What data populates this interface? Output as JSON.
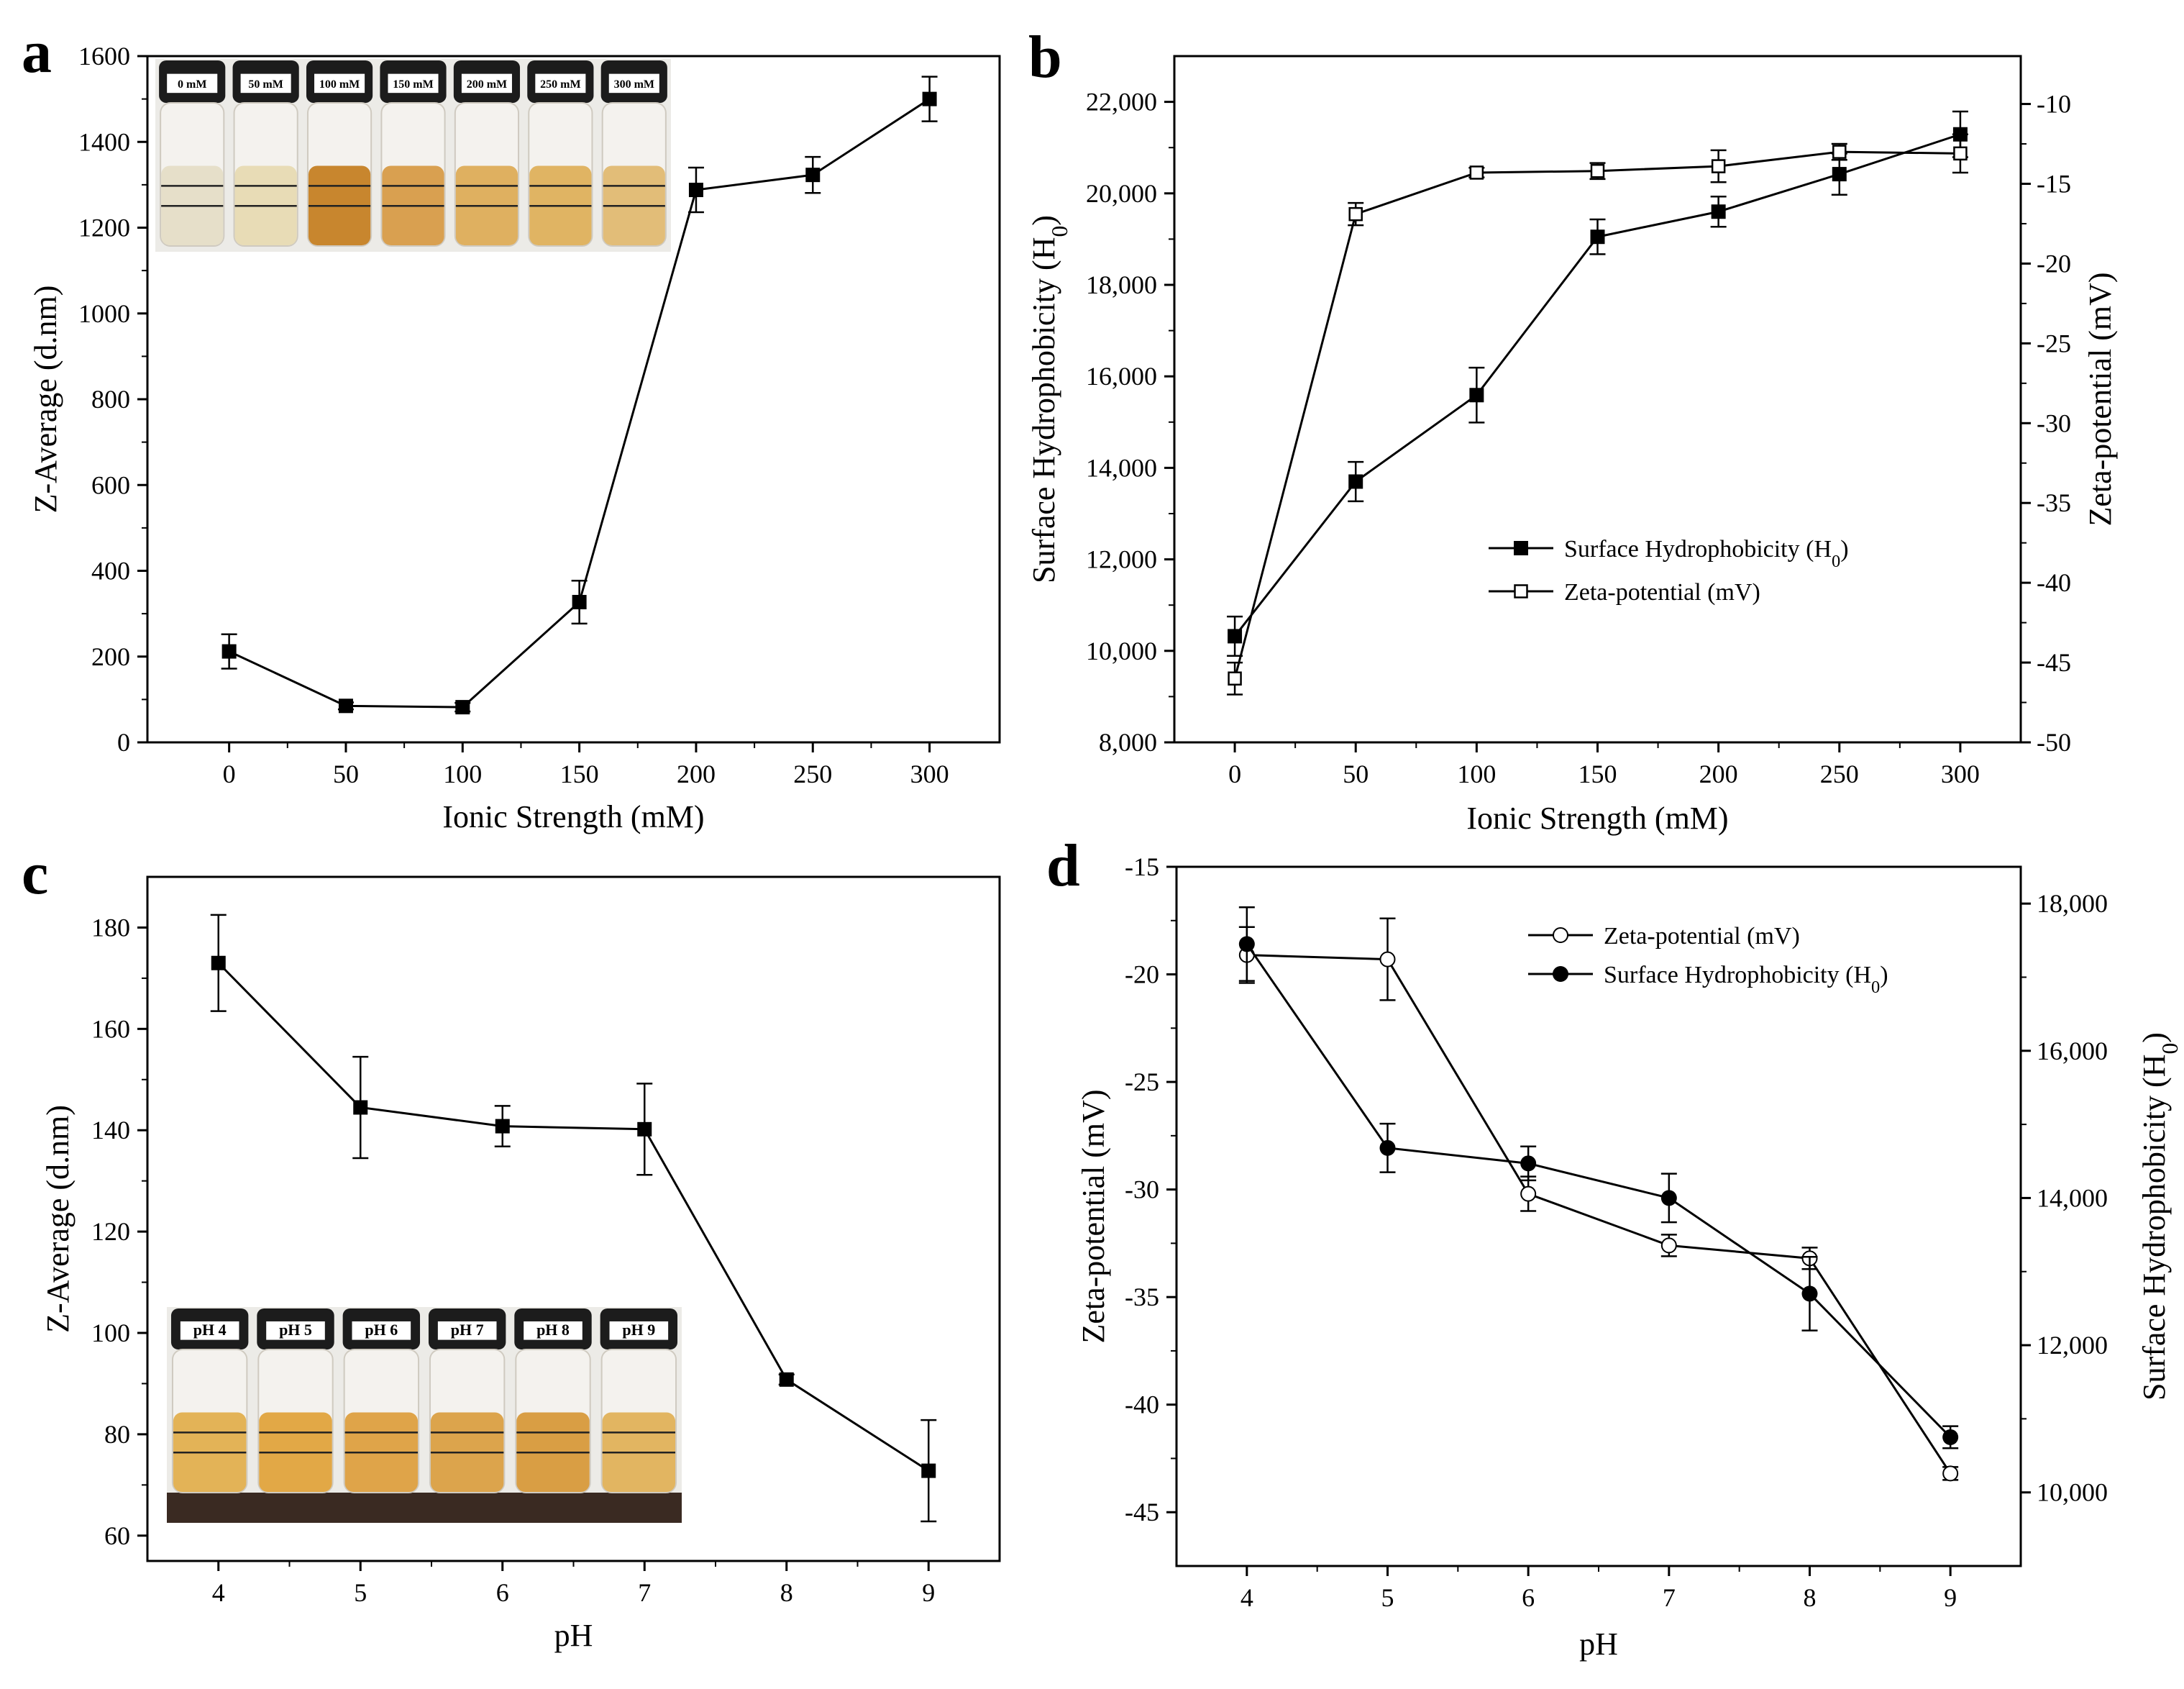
{
  "panels": {
    "a": "a",
    "b": "b",
    "c": "c",
    "d": "d"
  },
  "chart_data": [
    {
      "panel": "a",
      "type": "line",
      "xlabel": "Ionic Strength (mM)",
      "ylabel": "Z-Average (d.nm)",
      "xlim": [
        -35,
        330
      ],
      "ylim": [
        0,
        1600
      ],
      "xticks": [
        0,
        50,
        100,
        150,
        200,
        250,
        300
      ],
      "xtick_labels": [
        "0",
        "50",
        "100",
        "150",
        "200",
        "250",
        "300"
      ],
      "yticks": [
        0,
        200,
        400,
        600,
        800,
        1000,
        1200,
        1400,
        1600
      ],
      "ytick_labels": [
        "0",
        "200",
        "400",
        "600",
        "800",
        "1000",
        "1200",
        "1400",
        "1600"
      ],
      "series": [
        {
          "marker": "filled-square",
          "x": [
            0,
            50,
            100,
            150,
            200,
            250,
            300
          ],
          "y": [
            212,
            85,
            82,
            327,
            1288,
            1323,
            1500
          ],
          "err": [
            40,
            8,
            10,
            50,
            52,
            42,
            52
          ]
        }
      ],
      "inset": {
        "position": "top-left",
        "vial_labels": [
          "0 mM",
          "50 mM",
          "100 mM",
          "150 mM",
          "200 mM",
          "250 mM",
          "300 mM"
        ],
        "vial_colors": [
          "#e6dfc9",
          "#e8dcb6",
          "#c8862e",
          "#d9a050",
          "#dfb060",
          "#e0b463",
          "#e2bd78"
        ]
      }
    },
    {
      "panel": "b",
      "type": "line",
      "xlabel": "Ionic Strength (mM)",
      "ylabel": "Surface Hydrophobicity (H0)",
      "y2label": "Zeta-potential (mV)",
      "xlim": [
        -25,
        325
      ],
      "ylim": [
        8000,
        23000
      ],
      "y2lim": [
        -50,
        -7
      ],
      "xticks": [
        0,
        50,
        100,
        150,
        200,
        250,
        300
      ],
      "xtick_labels": [
        "0",
        "50",
        "100",
        "150",
        "200",
        "250",
        "300"
      ],
      "yticks": [
        8000,
        10000,
        12000,
        14000,
        16000,
        18000,
        20000,
        22000
      ],
      "ytick_labels": [
        "8,000",
        "10,000",
        "12,000",
        "14,000",
        "16,000",
        "18,000",
        "20,000",
        "22,000"
      ],
      "y2ticks": [
        -50,
        -45,
        -40,
        -35,
        -30,
        -25,
        -20,
        -15,
        -10
      ],
      "y2tick_labels": [
        "-50",
        "-45",
        "-40",
        "-35",
        "-30",
        "-25",
        "-20",
        "-15",
        "-10"
      ],
      "legend": "center-right",
      "series": [
        {
          "name": "Surface Hydrophobicity (H0)",
          "axis": "left",
          "marker": "filled-square",
          "x": [
            0,
            50,
            100,
            150,
            200,
            250,
            300
          ],
          "y": [
            10320,
            13700,
            15590,
            19050,
            19600,
            20420,
            21290
          ],
          "err": [
            430,
            430,
            600,
            380,
            330,
            450,
            500
          ]
        },
        {
          "name": "Zeta-potential (mV)",
          "axis": "right",
          "marker": "open-square",
          "x": [
            0,
            50,
            100,
            150,
            200,
            250,
            300
          ],
          "y": [
            -46.0,
            -16.9,
            -14.3,
            -14.2,
            -13.9,
            -13.0,
            -13.1
          ],
          "err": [
            1.0,
            0.7,
            0.3,
            0.5,
            1.0,
            0.5,
            1.2
          ]
        }
      ]
    },
    {
      "panel": "c",
      "type": "line",
      "xlabel": "pH",
      "ylabel": "Z-Average (d.nm)",
      "xlim": [
        3.5,
        9.5
      ],
      "ylim": [
        55,
        190
      ],
      "xticks": [
        4,
        5,
        6,
        7,
        8,
        9
      ],
      "xtick_labels": [
        "4",
        "5",
        "6",
        "7",
        "8",
        "9"
      ],
      "yticks": [
        60,
        80,
        100,
        120,
        140,
        160,
        180
      ],
      "ytick_labels": [
        "60",
        "80",
        "100",
        "120",
        "140",
        "160",
        "180"
      ],
      "series": [
        {
          "marker": "filled-square",
          "x": [
            4,
            5,
            6,
            7,
            8,
            9
          ],
          "y": [
            173,
            144.5,
            140.8,
            140.2,
            90.8,
            72.8
          ],
          "err": [
            9.5,
            10,
            4,
            9,
            1,
            10
          ]
        }
      ],
      "inset": {
        "position": "bottom-left",
        "vial_labels": [
          "pH 4",
          "pH 5",
          "pH 6",
          "pH 7",
          "pH 8",
          "pH 9"
        ],
        "vial_colors": [
          "#e3b357",
          "#e2a846",
          "#dfa449",
          "#dca44c",
          "#d99e44",
          "#e2b561"
        ]
      }
    },
    {
      "panel": "d",
      "type": "line",
      "xlabel": "pH",
      "ylabel": "Zeta-potential (mV)",
      "y2label": "Surface Hydrophobicity (H0)",
      "xlim": [
        3.5,
        9.5
      ],
      "ylim": [
        -47.5,
        -15
      ],
      "y2lim": [
        9000,
        18500
      ],
      "xticks": [
        4,
        5,
        6,
        7,
        8,
        9
      ],
      "xtick_labels": [
        "4",
        "5",
        "6",
        "7",
        "8",
        "9"
      ],
      "yticks": [
        -45,
        -40,
        -35,
        -30,
        -25,
        -20,
        -15
      ],
      "ytick_labels": [
        "-45",
        "-40",
        "-35",
        "-30",
        "-25",
        "-20",
        "-15"
      ],
      "y2ticks": [
        10000,
        12000,
        14000,
        16000,
        18000
      ],
      "y2tick_labels": [
        "10,000",
        "12,000",
        "14,000",
        "16,000",
        "18,000"
      ],
      "legend": "top-right",
      "series": [
        {
          "name": "Zeta-potential (mV)",
          "axis": "left",
          "marker": "open-circle",
          "x": [
            4,
            5,
            6,
            7,
            8,
            9
          ],
          "y": [
            -19.1,
            -19.3,
            -30.2,
            -32.6,
            -33.2,
            -43.2
          ],
          "err": [
            1.3,
            1.9,
            0.8,
            0.5,
            0.5,
            0.3
          ]
        },
        {
          "name": "Surface Hydrophobicity (H0)",
          "axis": "right",
          "marker": "filled-circle",
          "x": [
            4,
            5,
            6,
            7,
            8,
            9
          ],
          "y": [
            17450,
            14680,
            14470,
            14000,
            12700,
            10750
          ],
          "err": [
            500,
            330,
            230,
            330,
            500,
            150
          ]
        }
      ]
    }
  ]
}
